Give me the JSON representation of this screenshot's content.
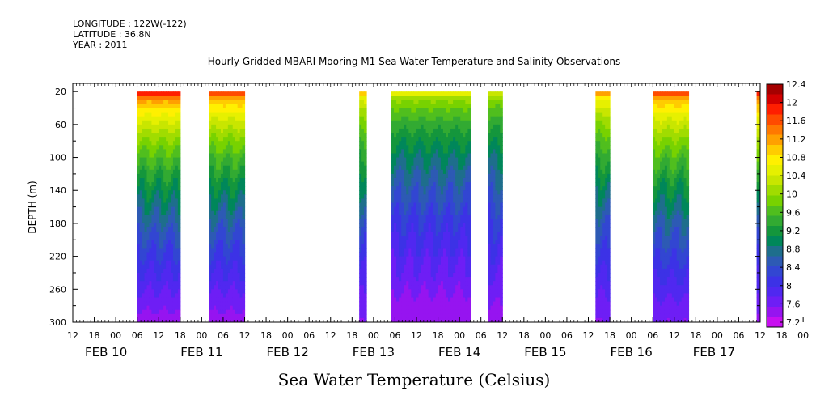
{
  "header": {
    "longitude": "LONGITUDE : 122W(-122)",
    "latitude": "LATITUDE : 36.8N",
    "year": "YEAR : 2011"
  },
  "chart_data": {
    "type": "heatmap",
    "title": "Hourly Gridded MBARI Mooring M1 Sea Water Temperature and Salinity Observations",
    "xlabel": "",
    "ylabel": "DEPTH (m)",
    "colorbar_label": "Sea Water Temperature (Celsius)",
    "x_hour_ticks": [
      "12",
      "18",
      "00",
      "06",
      "12",
      "18",
      "00",
      "06",
      "12",
      "18",
      "00",
      "06",
      "12",
      "18",
      "00",
      "06",
      "12",
      "18",
      "00",
      "06",
      "12",
      "18",
      "00",
      "06",
      "12",
      "18",
      "00",
      "06",
      "12",
      "18",
      "00",
      "06",
      "12",
      "18",
      "00",
      "06",
      "12",
      "18",
      "00",
      "06",
      "12",
      "18",
      "00",
      "06",
      "12"
    ],
    "x_day_labels": [
      "FEB 10",
      "FEB 11",
      "FEB 12",
      "FEB 13",
      "FEB 14",
      "FEB 15",
      "FEB 16",
      "FEB 17"
    ],
    "x_range_hours": [
      -12,
      180
    ],
    "y_ticks": [
      "20",
      "60",
      "100",
      "140",
      "180",
      "220",
      "260",
      "300"
    ],
    "ylim": [
      300,
      20
    ],
    "colorbar_ticks": [
      "12.4",
      "12",
      "11.6",
      "11.2",
      "10.8",
      "10.4",
      "10",
      "9.6",
      "9.2",
      "8.8",
      "8.4",
      "8",
      "7.6",
      "7.2"
    ],
    "colorbar_colors": [
      "#a50000",
      "#d20000",
      "#ff1e00",
      "#ff4b00",
      "#ff7800",
      "#ffa000",
      "#ffcc00",
      "#fff000",
      "#e6f000",
      "#c8e600",
      "#a0dc00",
      "#78d200",
      "#50be1e",
      "#32aa32",
      "#14963c",
      "#00875a",
      "#1e6e8c",
      "#2d5ab4",
      "#3246d2",
      "#3c32e6",
      "#5028f0",
      "#6e1ef5",
      "#9614f0",
      "#c80ff0"
    ],
    "series": [
      {
        "start_hour": 6,
        "end_hour": 18,
        "t_surface": 11.8,
        "t_bottom": 7.5
      },
      {
        "start_hour": 26,
        "end_hour": 36,
        "t_surface": 11.7,
        "t_bottom": 7.5
      },
      {
        "start_hour": 68,
        "end_hour": 70,
        "t_surface": 11.0,
        "t_bottom": 7.6
      },
      {
        "start_hour": 77,
        "end_hour": 99,
        "t_surface": 10.5,
        "t_bottom": 7.4
      },
      {
        "start_hour": 104,
        "end_hour": 108,
        "t_surface": 10.4,
        "t_bottom": 7.5
      },
      {
        "start_hour": 134,
        "end_hour": 138,
        "t_surface": 11.2,
        "t_bottom": 7.6
      },
      {
        "start_hour": 150,
        "end_hour": 160,
        "t_surface": 11.7,
        "t_bottom": 7.6
      },
      {
        "start_hour": 179,
        "end_hour": 192,
        "t_surface": 11.9,
        "t_bottom": 7.5
      }
    ]
  }
}
